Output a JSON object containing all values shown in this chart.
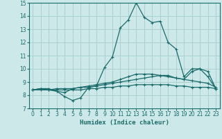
{
  "xlabel": "Humidex (Indice chaleur)",
  "ylabel": "",
  "bg_color": "#cce8e8",
  "grid_color": "#aad0d0",
  "line_color": "#1a6b6b",
  "xlim": [
    -0.5,
    23.5
  ],
  "ylim": [
    7,
    15
  ],
  "xticks": [
    0,
    1,
    2,
    3,
    4,
    5,
    6,
    7,
    8,
    9,
    10,
    11,
    12,
    13,
    14,
    15,
    16,
    17,
    18,
    19,
    20,
    21,
    22,
    23
  ],
  "yticks": [
    7,
    8,
    9,
    10,
    11,
    12,
    13,
    14,
    15
  ],
  "lines": [
    {
      "x": [
        0,
        1,
        2,
        3,
        4,
        5,
        6,
        7,
        8,
        9,
        10,
        11,
        12,
        13,
        14,
        15,
        16,
        17,
        18,
        19,
        20,
        21,
        22,
        23
      ],
      "y": [
        8.4,
        8.5,
        8.4,
        8.3,
        7.9,
        7.6,
        7.8,
        8.6,
        8.7,
        10.1,
        10.9,
        13.1,
        13.7,
        15.0,
        13.9,
        13.5,
        13.6,
        12.0,
        11.5,
        9.4,
        10.0,
        10.0,
        9.4,
        8.5
      ]
    },
    {
      "x": [
        0,
        1,
        2,
        3,
        4,
        5,
        6,
        7,
        8,
        9,
        10,
        11,
        12,
        13,
        14,
        15,
        16,
        17,
        18,
        19,
        20,
        21,
        22,
        23
      ],
      "y": [
        8.4,
        8.5,
        8.5,
        8.3,
        8.2,
        8.5,
        8.6,
        8.7,
        8.8,
        8.9,
        9.0,
        9.2,
        9.4,
        9.6,
        9.6,
        9.6,
        9.5,
        9.4,
        9.3,
        9.2,
        9.8,
        10.0,
        9.8,
        8.5
      ]
    },
    {
      "x": [
        0,
        1,
        2,
        3,
        4,
        5,
        6,
        7,
        8,
        9,
        10,
        11,
        12,
        13,
        14,
        15,
        16,
        17,
        18,
        19,
        20,
        21,
        22,
        23
      ],
      "y": [
        8.4,
        8.5,
        8.4,
        8.5,
        8.5,
        8.5,
        8.6,
        8.6,
        8.7,
        8.8,
        8.9,
        9.0,
        9.1,
        9.2,
        9.3,
        9.4,
        9.5,
        9.5,
        9.3,
        9.2,
        9.1,
        9.0,
        8.9,
        8.6
      ]
    },
    {
      "x": [
        0,
        1,
        2,
        3,
        4,
        5,
        6,
        7,
        8,
        9,
        10,
        11,
        12,
        13,
        14,
        15,
        16,
        17,
        18,
        19,
        20,
        21,
        22,
        23
      ],
      "y": [
        8.4,
        8.4,
        8.4,
        8.4,
        8.4,
        8.4,
        8.4,
        8.5,
        8.5,
        8.6,
        8.6,
        8.7,
        8.7,
        8.8,
        8.8,
        8.8,
        8.8,
        8.8,
        8.7,
        8.7,
        8.6,
        8.6,
        8.6,
        8.5
      ]
    }
  ]
}
